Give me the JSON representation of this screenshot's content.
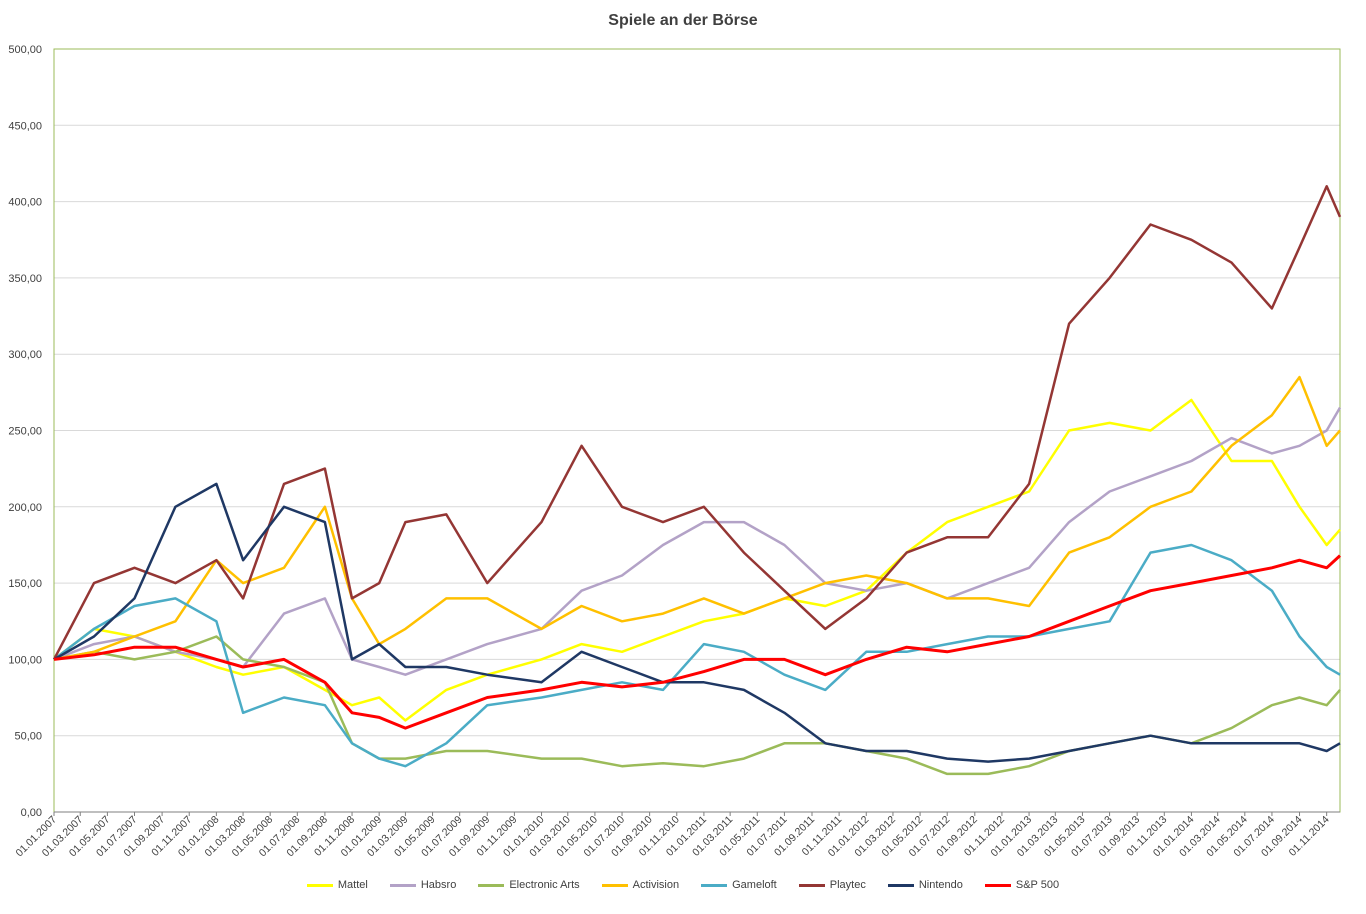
{
  "chart_data": {
    "type": "line",
    "title": "Spiele an der Börse",
    "xlabel": "",
    "ylabel": "",
    "ylim": [
      0,
      500
    ],
    "y_ticks": [
      "0,00",
      "50,00",
      "100,00",
      "150,00",
      "200,00",
      "250,00",
      "300,00",
      "350,00",
      "400,00",
      "450,00",
      "500,00"
    ],
    "x_ticks": [
      "01.01.2007",
      "01.03.2007",
      "01.05.2007",
      "01.07.2007",
      "01.09.2007",
      "01.11.2007",
      "01.01.2008",
      "01.03.2008",
      "01.05.2008",
      "01.07.2008",
      "01.09.2008",
      "01.11.2008",
      "01.01.2009",
      "01.03.2009",
      "01.05.2009",
      "01.07.2009",
      "01.09.2009",
      "01.11.2009",
      "01.01.2010",
      "01.03.2010",
      "01.05.2010",
      "01.07.2010",
      "01.09.2010",
      "01.11.2010",
      "01.01.2011",
      "01.03.2011",
      "01.05.2011",
      "01.07.2011",
      "01.09.2011",
      "01.11.2011",
      "01.01.2012",
      "01.03.2012",
      "01.05.2012",
      "01.07.2012",
      "01.09.2012",
      "01.11.2012",
      "01.01.2013",
      "01.03.2013",
      "01.05.2013",
      "01.07.2013",
      "01.09.2013",
      "01.11.2013",
      "01.01.2014",
      "01.03.2014",
      "01.05.2014",
      "01.07.2014",
      "01.09.2014",
      "01.11.2014"
    ],
    "x_range": [
      "2007-01-01",
      "2014-12-01"
    ],
    "grid": true,
    "legend_position": "bottom",
    "series": [
      {
        "name": "Mattel",
        "color": "#ffff00",
        "x": [
          "2007-01-01",
          "2007-04-01",
          "2007-07-01",
          "2007-10-01",
          "2008-01-01",
          "2008-03-01",
          "2008-06-01",
          "2008-09-01",
          "2008-11-01",
          "2009-01-01",
          "2009-03-01",
          "2009-06-01",
          "2009-09-01",
          "2010-01-01",
          "2010-04-01",
          "2010-07-01",
          "2010-10-01",
          "2011-01-01",
          "2011-04-01",
          "2011-07-01",
          "2011-10-01",
          "2012-01-01",
          "2012-04-01",
          "2012-07-01",
          "2012-10-01",
          "2013-01-01",
          "2013-04-01",
          "2013-07-01",
          "2013-10-01",
          "2014-01-01",
          "2014-04-01",
          "2014-07-01",
          "2014-09-01",
          "2014-11-01",
          "2014-12-01"
        ],
        "values": [
          100,
          120,
          115,
          105,
          95,
          90,
          95,
          80,
          70,
          75,
          60,
          80,
          90,
          100,
          110,
          105,
          115,
          125,
          130,
          140,
          135,
          145,
          170,
          190,
          200,
          210,
          250,
          255,
          250,
          270,
          230,
          230,
          200,
          175,
          185
        ]
      },
      {
        "name": "Habsro",
        "color": "#b3a2c7",
        "x": [
          "2007-01-01",
          "2007-04-01",
          "2007-07-01",
          "2007-10-01",
          "2008-01-01",
          "2008-03-01",
          "2008-06-01",
          "2008-09-01",
          "2008-11-01",
          "2009-01-01",
          "2009-03-01",
          "2009-06-01",
          "2009-09-01",
          "2010-01-01",
          "2010-04-01",
          "2010-07-01",
          "2010-10-01",
          "2011-01-01",
          "2011-04-01",
          "2011-07-01",
          "2011-10-01",
          "2012-01-01",
          "2012-04-01",
          "2012-07-01",
          "2012-10-01",
          "2013-01-01",
          "2013-04-01",
          "2013-07-01",
          "2013-10-01",
          "2014-01-01",
          "2014-04-01",
          "2014-07-01",
          "2014-09-01",
          "2014-11-01",
          "2014-12-01"
        ],
        "values": [
          100,
          110,
          115,
          105,
          100,
          95,
          130,
          140,
          100,
          95,
          90,
          100,
          110,
          120,
          145,
          155,
          175,
          190,
          190,
          175,
          150,
          145,
          150,
          140,
          150,
          160,
          190,
          210,
          220,
          230,
          245,
          235,
          240,
          250,
          265
        ]
      },
      {
        "name": "Electronic Arts",
        "color": "#9bbb59",
        "x": [
          "2007-01-01",
          "2007-04-01",
          "2007-07-01",
          "2007-10-01",
          "2008-01-01",
          "2008-03-01",
          "2008-06-01",
          "2008-09-01",
          "2008-11-01",
          "2009-01-01",
          "2009-03-01",
          "2009-06-01",
          "2009-09-01",
          "2010-01-01",
          "2010-04-01",
          "2010-07-01",
          "2010-10-01",
          "2011-01-01",
          "2011-04-01",
          "2011-07-01",
          "2011-10-01",
          "2012-01-01",
          "2012-04-01",
          "2012-07-01",
          "2012-10-01",
          "2013-01-01",
          "2013-04-01",
          "2013-07-01",
          "2013-10-01",
          "2014-01-01",
          "2014-04-01",
          "2014-07-01",
          "2014-09-01",
          "2014-11-01",
          "2014-12-01"
        ],
        "values": [
          100,
          105,
          100,
          105,
          115,
          100,
          95,
          85,
          45,
          35,
          35,
          40,
          40,
          35,
          35,
          30,
          32,
          30,
          35,
          45,
          45,
          40,
          35,
          25,
          25,
          30,
          40,
          45,
          50,
          45,
          55,
          70,
          75,
          70,
          80
        ]
      },
      {
        "name": "Activision",
        "color": "#ffc000",
        "x": [
          "2007-01-01",
          "2007-04-01",
          "2007-07-01",
          "2007-10-01",
          "2008-01-01",
          "2008-03-01",
          "2008-06-01",
          "2008-09-01",
          "2008-11-01",
          "2009-01-01",
          "2009-03-01",
          "2009-06-01",
          "2009-09-01",
          "2010-01-01",
          "2010-04-01",
          "2010-07-01",
          "2010-10-01",
          "2011-01-01",
          "2011-04-01",
          "2011-07-01",
          "2011-10-01",
          "2012-01-01",
          "2012-04-01",
          "2012-07-01",
          "2012-10-01",
          "2013-01-01",
          "2013-04-01",
          "2013-07-01",
          "2013-10-01",
          "2014-01-01",
          "2014-04-01",
          "2014-07-01",
          "2014-09-01",
          "2014-11-01",
          "2014-12-01"
        ],
        "values": [
          100,
          105,
          115,
          125,
          165,
          150,
          160,
          200,
          140,
          110,
          120,
          140,
          140,
          120,
          135,
          125,
          130,
          140,
          130,
          140,
          150,
          155,
          150,
          140,
          140,
          135,
          170,
          180,
          200,
          210,
          240,
          260,
          285,
          240,
          250
        ]
      },
      {
        "name": "Gameloft",
        "color": "#4bacc6",
        "x": [
          "2007-01-01",
          "2007-04-01",
          "2007-07-01",
          "2007-10-01",
          "2008-01-01",
          "2008-03-01",
          "2008-06-01",
          "2008-09-01",
          "2008-11-01",
          "2009-01-01",
          "2009-03-01",
          "2009-06-01",
          "2009-09-01",
          "2010-01-01",
          "2010-04-01",
          "2010-07-01",
          "2010-10-01",
          "2011-01-01",
          "2011-04-01",
          "2011-07-01",
          "2011-10-01",
          "2012-01-01",
          "2012-04-01",
          "2012-07-01",
          "2012-10-01",
          "2013-01-01",
          "2013-04-01",
          "2013-07-01",
          "2013-10-01",
          "2014-01-01",
          "2014-04-01",
          "2014-07-01",
          "2014-09-01",
          "2014-11-01",
          "2014-12-01"
        ],
        "values": [
          100,
          120,
          135,
          140,
          125,
          65,
          75,
          70,
          45,
          35,
          30,
          45,
          70,
          75,
          80,
          85,
          80,
          110,
          105,
          90,
          80,
          105,
          105,
          110,
          115,
          115,
          120,
          125,
          170,
          175,
          165,
          145,
          115,
          95,
          90
        ]
      },
      {
        "name": "Playtec",
        "color": "#943634",
        "x": [
          "2007-01-01",
          "2007-04-01",
          "2007-07-01",
          "2007-10-01",
          "2008-01-01",
          "2008-03-01",
          "2008-06-01",
          "2008-09-01",
          "2008-11-01",
          "2009-01-01",
          "2009-03-01",
          "2009-06-01",
          "2009-09-01",
          "2010-01-01",
          "2010-04-01",
          "2010-07-01",
          "2010-10-01",
          "2011-01-01",
          "2011-04-01",
          "2011-07-01",
          "2011-10-01",
          "2012-01-01",
          "2012-04-01",
          "2012-07-01",
          "2012-10-01",
          "2013-01-01",
          "2013-04-01",
          "2013-07-01",
          "2013-10-01",
          "2014-01-01",
          "2014-04-01",
          "2014-07-01",
          "2014-09-01",
          "2014-11-01",
          "2014-12-01"
        ],
        "values": [
          100,
          150,
          160,
          150,
          165,
          140,
          215,
          225,
          140,
          150,
          190,
          195,
          150,
          190,
          240,
          200,
          190,
          200,
          170,
          145,
          120,
          140,
          170,
          180,
          180,
          215,
          320,
          350,
          385,
          375,
          360,
          330,
          370,
          410,
          390
        ]
      },
      {
        "name": "Nintendo",
        "color": "#1f3864",
        "x": [
          "2007-01-01",
          "2007-04-01",
          "2007-07-01",
          "2007-10-01",
          "2008-01-01",
          "2008-03-01",
          "2008-06-01",
          "2008-09-01",
          "2008-11-01",
          "2009-01-01",
          "2009-03-01",
          "2009-06-01",
          "2009-09-01",
          "2010-01-01",
          "2010-04-01",
          "2010-07-01",
          "2010-10-01",
          "2011-01-01",
          "2011-04-01",
          "2011-07-01",
          "2011-10-01",
          "2012-01-01",
          "2012-04-01",
          "2012-07-01",
          "2012-10-01",
          "2013-01-01",
          "2013-04-01",
          "2013-07-01",
          "2013-10-01",
          "2014-01-01",
          "2014-04-01",
          "2014-07-01",
          "2014-09-01",
          "2014-11-01",
          "2014-12-01"
        ],
        "values": [
          100,
          115,
          140,
          200,
          215,
          165,
          200,
          190,
          100,
          110,
          95,
          95,
          90,
          85,
          105,
          95,
          85,
          85,
          80,
          65,
          45,
          40,
          40,
          35,
          33,
          35,
          40,
          45,
          50,
          45,
          45,
          45,
          45,
          40,
          45
        ]
      },
      {
        "name": "S&P 500",
        "color": "#ff0000",
        "x": [
          "2007-01-01",
          "2007-04-01",
          "2007-07-01",
          "2007-10-01",
          "2008-01-01",
          "2008-03-01",
          "2008-06-01",
          "2008-09-01",
          "2008-11-01",
          "2009-01-01",
          "2009-03-01",
          "2009-06-01",
          "2009-09-01",
          "2010-01-01",
          "2010-04-01",
          "2010-07-01",
          "2010-10-01",
          "2011-01-01",
          "2011-04-01",
          "2011-07-01",
          "2011-10-01",
          "2012-01-01",
          "2012-04-01",
          "2012-07-01",
          "2012-10-01",
          "2013-01-01",
          "2013-04-01",
          "2013-07-01",
          "2013-10-01",
          "2014-01-01",
          "2014-04-01",
          "2014-07-01",
          "2014-09-01",
          "2014-11-01",
          "2014-12-01"
        ],
        "values": [
          100,
          103,
          108,
          108,
          100,
          95,
          100,
          85,
          65,
          62,
          55,
          65,
          75,
          80,
          85,
          82,
          85,
          92,
          100,
          100,
          90,
          100,
          108,
          105,
          110,
          115,
          125,
          135,
          145,
          150,
          155,
          160,
          165,
          160,
          168
        ]
      }
    ]
  }
}
